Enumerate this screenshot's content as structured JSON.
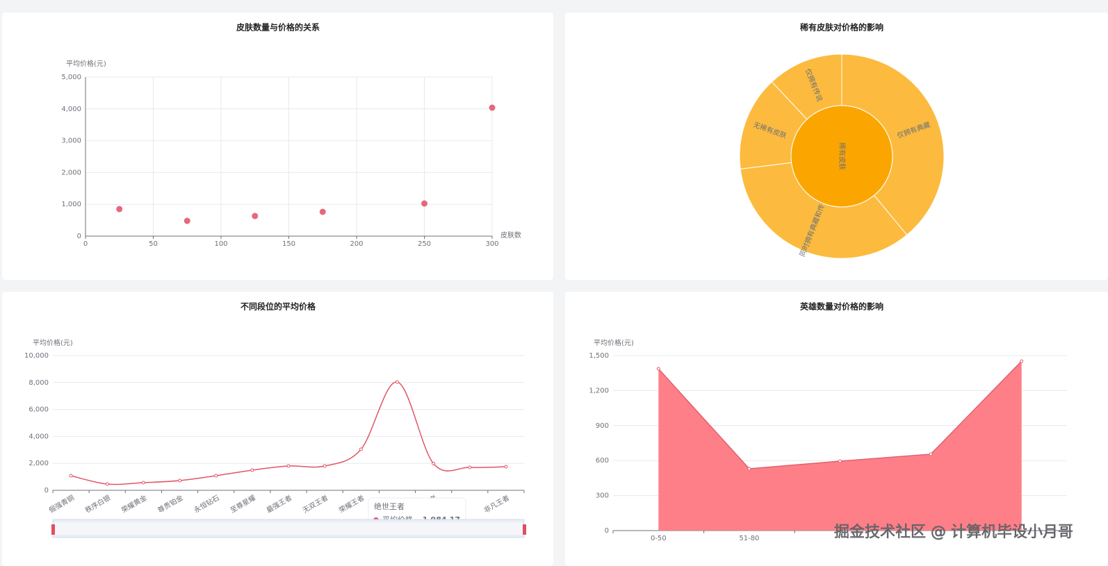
{
  "chart_data": [
    {
      "type": "scatter",
      "title": "皮肤数量与价格的关系",
      "y_label": "平均价格(元)",
      "x_label": "皮肤数",
      "x": [
        25,
        75,
        125,
        175,
        250,
        300
      ],
      "values": [
        851,
        480,
        633,
        764,
        1026,
        4039
      ],
      "color": "#e5697a",
      "xlim": [
        0,
        300
      ],
      "xticks": [
        0,
        50,
        100,
        150,
        200,
        250,
        300
      ],
      "ylim": [
        0,
        5000
      ],
      "yticks": [
        0,
        {
          "value": 1000,
          "label": "1,000"
        },
        {
          "value": 2000,
          "label": "2,000"
        },
        {
          "value": 3000,
          "label": "3,000"
        },
        {
          "value": 4000,
          "label": "4,000"
        },
        {
          "value": 5000,
          "label": "5,000"
        }
      ],
      "grid": true,
      "xgrid": true
    },
    {
      "type": "sunburst",
      "title": "稀有皮肤对价格的影响",
      "root": "稀有皮肤",
      "root_color": "#fba600",
      "categories": [
        "仅拥有典藏",
        "同时拥有典藏和传说",
        "无稀有皮肤",
        "仅拥有传说"
      ],
      "values": [
        39,
        34,
        15,
        12
      ],
      "color": "#fcbb3e"
    },
    {
      "type": "line",
      "title": "不同段位的平均价格",
      "y_label": "平均价格(元)",
      "categories": [
        "倔强青铜",
        "秩序白银",
        "荣耀黄金",
        "尊贵铂金",
        "永恒钻石",
        "至尊星耀",
        "最强王者",
        "无双王者",
        "荣耀王者",
        null,
        "绝世王者",
        null,
        "非凡王者"
      ],
      "series": [
        {
          "name": "平均价格",
          "color": "#e05565",
          "values": [
            1082,
            464,
            567,
            722,
            1082,
            1495,
            1804,
            1804,
            3041,
            8041,
            1984.17,
            1700,
            1752
          ],
          "value_labels": [
            null,
            null,
            null,
            null,
            null,
            null,
            null,
            null,
            null,
            null,
            "1,984.17",
            null,
            null
          ]
        }
      ],
      "ylim": [
        0,
        10000
      ],
      "yticks": [
        0,
        {
          "value": 2000,
          "label": "2,000"
        },
        {
          "value": 4000,
          "label": "4,000"
        },
        {
          "value": 6000,
          "label": "6,000"
        },
        {
          "value": 8000,
          "label": "8,000"
        },
        {
          "value": 10000,
          "label": "10,000"
        }
      ],
      "grid": true,
      "smooth": true
    },
    {
      "type": "area",
      "title": "英雄数量对价格的影响",
      "y_label": "平均价格(元)",
      "categories": [
        "0-50",
        "51-80",
        null,
        null,
        null
      ],
      "series": [
        {
          "name": "平均价格",
          "color": "#ff7f88",
          "values": [
            1387,
            530,
            595,
            655,
            1452
          ]
        }
      ],
      "ylim": [
        0,
        1500
      ],
      "yticks": [
        0,
        300,
        600,
        900,
        {
          "value": 1200,
          "label": "1,200"
        },
        {
          "value": 1500,
          "label": "1,500"
        }
      ],
      "grid": true
    }
  ],
  "watermark": "掘金技术社区 @ 计算机毕设小月哥"
}
